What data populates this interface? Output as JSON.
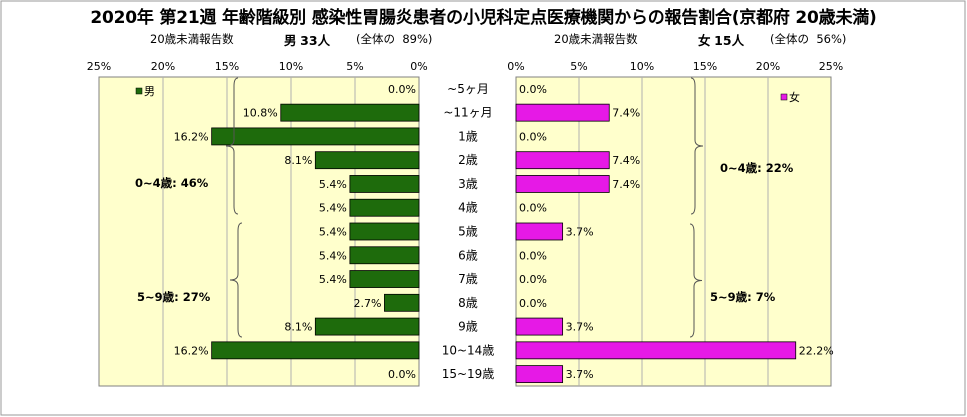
{
  "title": "2020年 第21週 年齢階級別 感染性胃腸炎患者の小児科定点医療機関からの報告割合(京都府 20歳未満)",
  "left": {
    "report_label": "20歳未満報告数",
    "sex": "男",
    "count": "33人",
    "share_label": "(全体の",
    "share": "89%)",
    "legend": "男",
    "color": "#1e6b0c"
  },
  "right": {
    "report_label": "20歳未満報告数",
    "sex": "女",
    "count": "15人",
    "share_label": "(全体の",
    "share": "56%)",
    "legend": "女",
    "color": "#e619e6"
  },
  "chart_data": {
    "type": "bar",
    "orientation": "horizontal-butterfly",
    "categories": [
      "~5ヶ月",
      "~11ヶ月",
      "1歳",
      "2歳",
      "3歳",
      "4歳",
      "5歳",
      "6歳",
      "7歳",
      "8歳",
      "9歳",
      "10~14歳",
      "15~19歳"
    ],
    "xlim": [
      0,
      25
    ],
    "x_ticks": [
      "0%",
      "5%",
      "10%",
      "15%",
      "20%",
      "25%"
    ],
    "series": [
      {
        "name": "男",
        "values": [
          0.0,
          10.8,
          16.2,
          8.1,
          5.4,
          5.4,
          5.4,
          5.4,
          5.4,
          2.7,
          8.1,
          16.2,
          0.0
        ],
        "labels": [
          "0.0%",
          "10.8%",
          "16.2%",
          "8.1%",
          "5.4%",
          "5.4%",
          "5.4%",
          "5.4%",
          "5.4%",
          "2.7%",
          "8.1%",
          "16.2%",
          "0.0%"
        ]
      },
      {
        "name": "女",
        "values": [
          0.0,
          7.4,
          0.0,
          7.4,
          7.4,
          0.0,
          3.7,
          0.0,
          0.0,
          0.0,
          3.7,
          22.2,
          3.7
        ],
        "labels": [
          "0.0%",
          "7.4%",
          "0.0%",
          "7.4%",
          "7.4%",
          "0.0%",
          "3.7%",
          "0.0%",
          "0.0%",
          "0.0%",
          "3.7%",
          "22.2%",
          "3.7%"
        ]
      }
    ],
    "annotations": {
      "male_0_4": "0~4歳: 46%",
      "male_5_9": "5~9歳: 27%",
      "female_0_4": "0~4歳: 22%",
      "female_5_9": "5~9歳: 7%"
    },
    "grid": true
  }
}
